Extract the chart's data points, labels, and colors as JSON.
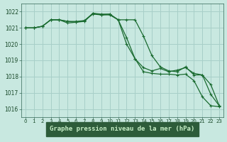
{
  "title": "Graphe pression niveau de la mer (hPa)",
  "background_color": "#c8e8e0",
  "grid_color": "#a8cfc8",
  "line_color": "#1a6b30",
  "marker_color": "#1a6b30",
  "xlabel_bg": "#2a5a3a",
  "xlabel_fg": "#c8e8c0",
  "xlim": [
    -0.5,
    23.5
  ],
  "ylim": [
    1015.5,
    1022.5
  ],
  "yticks": [
    1016,
    1017,
    1018,
    1019,
    1020,
    1021,
    1022
  ],
  "xticks": [
    0,
    1,
    2,
    3,
    4,
    5,
    6,
    7,
    8,
    9,
    10,
    11,
    12,
    13,
    14,
    15,
    16,
    17,
    18,
    19,
    20,
    21,
    22,
    23
  ],
  "s1_x": [
    0,
    1,
    2,
    3,
    4,
    5,
    6,
    7,
    8,
    9,
    10,
    11,
    12,
    13,
    14,
    15,
    16,
    17,
    18,
    19,
    20,
    21,
    22,
    23
  ],
  "s1_y": [
    1021.0,
    1021.0,
    1021.1,
    1021.5,
    1021.5,
    1021.3,
    1021.35,
    1021.45,
    1021.85,
    1021.8,
    1021.8,
    1021.5,
    1020.0,
    1019.1,
    1018.3,
    1018.2,
    1018.15,
    1018.15,
    1018.1,
    1018.15,
    1017.75,
    1016.75,
    1016.2,
    1016.15
  ],
  "s2_x": [
    0,
    1,
    2,
    3,
    4,
    5,
    6,
    7,
    8,
    9,
    10,
    11,
    12,
    13,
    14,
    15,
    16,
    17,
    18,
    19,
    20,
    21,
    22,
    23
  ],
  "s2_y": [
    1021.0,
    1021.0,
    1021.1,
    1021.5,
    1021.5,
    1021.4,
    1021.35,
    1021.4,
    1021.9,
    1021.8,
    1021.85,
    1021.5,
    1020.4,
    1019.1,
    1018.55,
    1018.35,
    1018.5,
    1018.3,
    1018.4,
    1018.55,
    1018.2,
    1018.1,
    1017.5,
    1016.2
  ],
  "s3_x": [
    0,
    1,
    2,
    3,
    4,
    5,
    6,
    7,
    8,
    9,
    10,
    11,
    12,
    13,
    14,
    15,
    16,
    17,
    18,
    19,
    20,
    21,
    22,
    23
  ],
  "s3_y": [
    1021.0,
    1021.0,
    1021.1,
    1021.5,
    1021.5,
    1021.4,
    1021.4,
    1021.45,
    1021.9,
    1021.85,
    1021.85,
    1021.5,
    1021.5,
    1021.5,
    1020.5,
    1019.3,
    1018.6,
    1018.35,
    1018.3,
    1018.6,
    1018.1,
    1018.1,
    1016.9,
    1016.2
  ]
}
